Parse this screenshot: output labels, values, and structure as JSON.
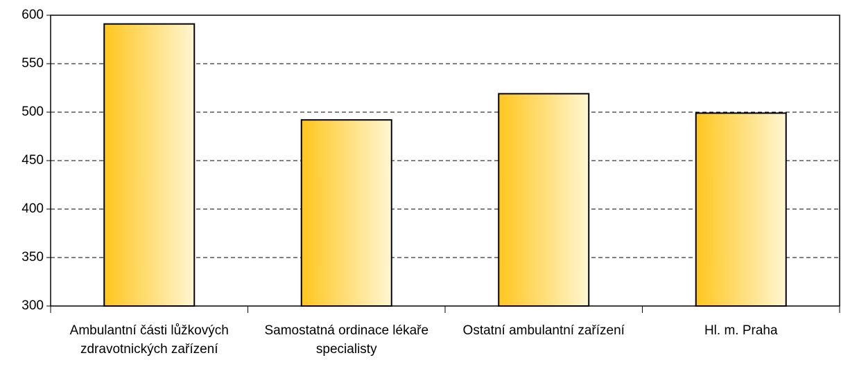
{
  "chart_data": {
    "type": "bar",
    "categories": [
      "Ambulantní části lůžkových zdravotnických zařízení",
      "Samostatná ordinace lékaře specialisty",
      "Ostatní ambulantní zařízení",
      "Hl. m. Praha"
    ],
    "values": [
      591,
      492,
      519,
      499
    ],
    "color": "#ffc61e",
    "ylim": [
      300,
      600
    ],
    "yticks": [
      300,
      350,
      400,
      450,
      500,
      550,
      600
    ],
    "grid": true
  }
}
